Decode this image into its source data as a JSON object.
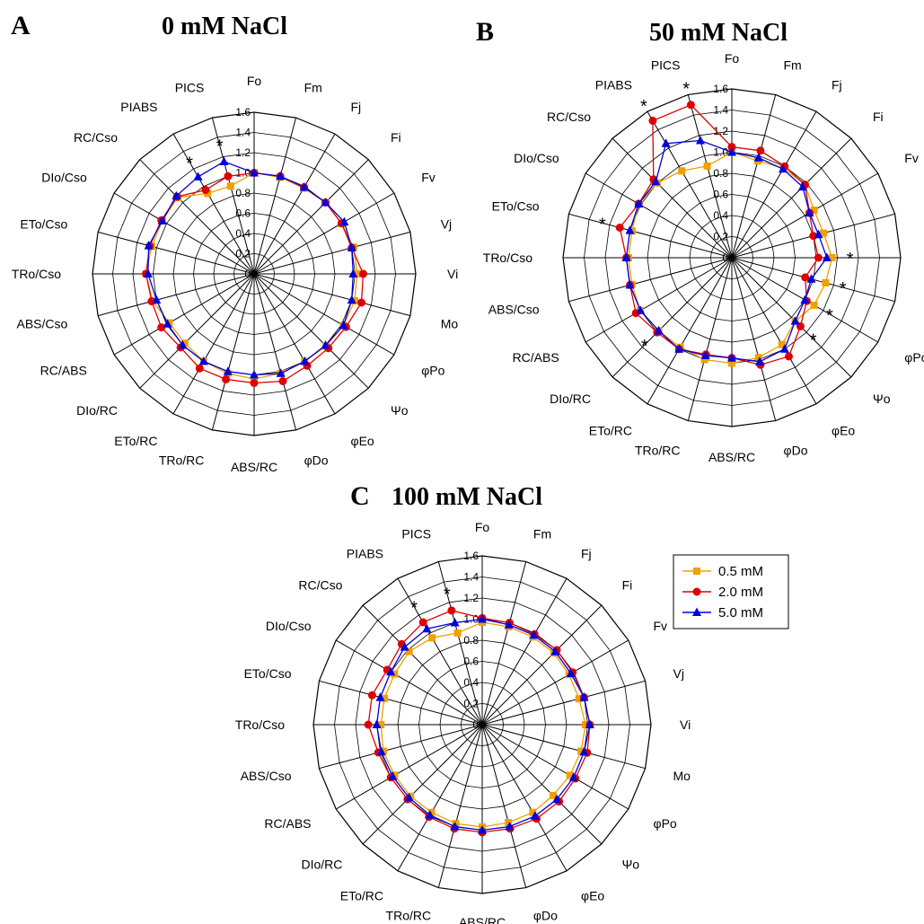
{
  "chart_data": [
    {
      "type": "radar",
      "panel_letter": "A",
      "title": "0 mM NaCl",
      "rlim": [
        0,
        1.6
      ],
      "r_ticks": [
        "0",
        "0.2",
        "0.4",
        "0.6",
        "0.8",
        "1.0",
        "1.2",
        "1.4",
        "1.6"
      ],
      "grid": true,
      "categories": [
        "Fo",
        "Fm",
        "Fj",
        "Fi",
        "Fv",
        "Vj",
        "Vi",
        "Mo",
        "φPo",
        "Ψo",
        "φEo",
        "φDo",
        "ABS/RC",
        "TRo/RC",
        "ETo/RC",
        "DIo/RC",
        "RC/ABS",
        "ABS/Cso",
        "TRo/Cso",
        "ETo/Cso",
        "DIo/Cso",
        "RC/Cso",
        "PIABS",
        "PICS"
      ],
      "series": [
        {
          "name": "0.5 mM",
          "values": [
            1.0,
            0.99,
            0.98,
            1.0,
            1.0,
            1.02,
            1.02,
            1.03,
            1.02,
            1.01,
            1.0,
            1.02,
            1.04,
            1.02,
            1.0,
            0.97,
            0.97,
            1.04,
            1.07,
            1.05,
            1.05,
            1.07,
            0.92,
            0.9
          ]
        },
        {
          "name": "2.0 mM",
          "values": [
            1.0,
            1.0,
            0.99,
            1.0,
            1.0,
            1.0,
            1.08,
            1.1,
            1.05,
            1.04,
            1.05,
            1.1,
            1.08,
            1.08,
            1.08,
            1.03,
            1.06,
            1.05,
            1.07,
            1.07,
            1.06,
            1.08,
            0.96,
            1.0
          ]
        },
        {
          "name": "5.0 mM",
          "values": [
            1.0,
            1.0,
            0.99,
            1.0,
            1.03,
            1.0,
            0.98,
            1.0,
            1.02,
            1.0,
            1.0,
            1.02,
            1.0,
            1.0,
            1.0,
            1.0,
            0.99,
            1.0,
            1.05,
            1.08,
            1.05,
            1.09,
            1.11,
            1.15
          ]
        }
      ],
      "significance_marks": [
        "PIABS",
        "PICS"
      ]
    },
    {
      "type": "radar",
      "panel_letter": "B",
      "title": "50 mM NaCl",
      "rlim": [
        0,
        1.6
      ],
      "r_ticks": [
        "0",
        "0.2",
        "0.4",
        "0.6",
        "0.8",
        "1.0",
        "1.2",
        "1.4",
        "1.6"
      ],
      "grid": true,
      "categories": [
        "Fo",
        "Fm",
        "Fj",
        "Fi",
        "Fv",
        "Vj",
        "Vi",
        "Mo",
        "φPo",
        "Ψo",
        "φEo",
        "φDo",
        "ABS/RC",
        "TRo/RC",
        "ETo/RC",
        "DIo/RC",
        "RC/ABS",
        "ABS/Cso",
        "TRo/Cso",
        "ETo/Cso",
        "DIo/Cso",
        "RC/Cso",
        "PIABS",
        "PICS"
      ],
      "series": [
        {
          "name": "0.5 mM",
          "values": [
            1.0,
            0.95,
            0.98,
            0.98,
            0.9,
            0.9,
            0.95,
            0.92,
            0.9,
            0.85,
            0.95,
            0.98,
            1.0,
            1.0,
            0.98,
            0.98,
            1.0,
            0.98,
            0.98,
            0.98,
            1.02,
            1.0,
            0.95,
            0.9
          ]
        },
        {
          "name": "2.0 mM",
          "values": [
            1.05,
            1.05,
            1.0,
            0.98,
            0.85,
            0.8,
            0.82,
            0.72,
            0.82,
            0.92,
            1.08,
            1.05,
            0.95,
            0.95,
            1.0,
            1.0,
            1.05,
            1.0,
            1.0,
            1.1,
            1.02,
            1.05,
            1.5,
            1.5
          ]
        },
        {
          "name": "5.0 mM",
          "values": [
            1.0,
            0.98,
            0.97,
            0.95,
            0.85,
            0.85,
            0.9,
            0.78,
            0.8,
            0.85,
            1.0,
            1.02,
            0.95,
            0.96,
            1.0,
            0.98,
            1.0,
            1.0,
            1.0,
            1.0,
            1.02,
            1.02,
            1.25,
            1.15
          ]
        }
      ],
      "significance_marks": [
        "PIABS",
        "PICS",
        "ETo/Cso",
        "Vi",
        "Mo",
        "φPo",
        "Ψo",
        "DIo/RC"
      ]
    },
    {
      "type": "radar",
      "panel_letter": "C",
      "title": "100 mM NaCl",
      "rlim": [
        0,
        1.6
      ],
      "r_ticks": [
        "0",
        "0.2",
        "0.4",
        "0.6",
        "0.8",
        "1.0",
        "1.2",
        "1.4",
        "1.6"
      ],
      "grid": true,
      "categories": [
        "Fo",
        "Fm",
        "Fj",
        "Fi",
        "Fv",
        "Vj",
        "Vi",
        "Mo",
        "φPo",
        "Ψo",
        "φEo",
        "φDo",
        "ABS/RC",
        "TRo/RC",
        "ETo/RC",
        "DIo/RC",
        "RC/ABS",
        "ABS/Cso",
        "TRo/Cso",
        "ETo/Cso",
        "DIo/Cso",
        "RC/Cso",
        "PIABS",
        "PICS"
      ],
      "series": [
        {
          "name": "0.5 mM",
          "values": [
            0.97,
            0.96,
            0.96,
            0.96,
            0.95,
            0.95,
            0.98,
            0.97,
            0.96,
            0.95,
            0.96,
            0.96,
            0.97,
            0.97,
            0.96,
            0.96,
            0.96,
            0.97,
            0.96,
            0.96,
            0.96,
            0.98,
            0.95,
            0.9
          ]
        },
        {
          "name": "2.0 mM",
          "values": [
            1.01,
            1.0,
            0.99,
            1.0,
            0.99,
            1.0,
            1.02,
            1.03,
            1.02,
            1.03,
            1.03,
            1.02,
            1.02,
            1.02,
            1.01,
            1.0,
            1.0,
            1.02,
            1.08,
            1.08,
            1.04,
            1.08,
            1.12,
            1.12
          ]
        },
        {
          "name": "5.0 mM",
          "values": [
            1.0,
            0.98,
            0.98,
            0.98,
            0.97,
            1.0,
            1.02,
            1.0,
            1.0,
            1.0,
            1.0,
            1.0,
            1.0,
            1.0,
            0.99,
            0.98,
            0.98,
            0.99,
            1.0,
            1.0,
            1.0,
            1.04,
            1.05,
            1.0
          ]
        }
      ],
      "significance_marks": [
        "PIABS",
        "PICS"
      ]
    }
  ],
  "legend": {
    "entries": [
      {
        "label": "0.5 mM",
        "color": "#f0a000",
        "marker": "square"
      },
      {
        "label": "2.0 mM",
        "color": "#e00000",
        "marker": "circle"
      },
      {
        "label": "5.0 mM",
        "color": "#0000dd",
        "marker": "triangle"
      }
    ]
  },
  "colors": {
    "grid": "#000000",
    "star": "#000000"
  }
}
